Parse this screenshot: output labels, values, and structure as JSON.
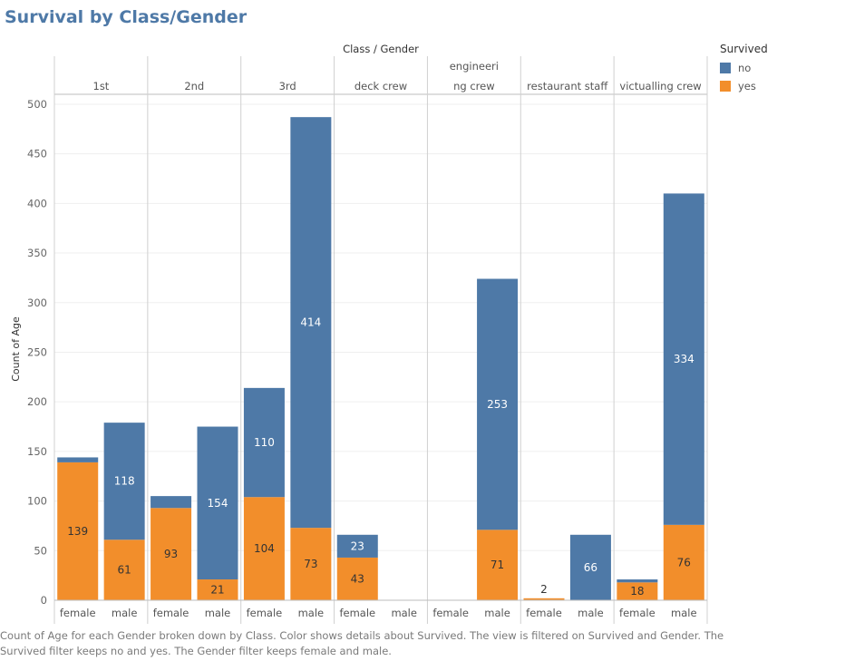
{
  "title": "Survival by Class/Gender",
  "caption": "Count of Age for each Gender broken down by Class.  Color shows details about Survived. The view is filtered on Survived and Gender. The Survived filter keeps no and yes. The Gender filter keeps female and male.",
  "legend": {
    "title": "Survived",
    "items": [
      {
        "label": "no",
        "color": "#4e79a7"
      },
      {
        "label": "yes",
        "color": "#f28e2b"
      }
    ]
  },
  "chart_data": {
    "type": "bar",
    "stacked": true,
    "title": "Survival by Class/Gender",
    "column_header": "Class / Gender",
    "ylabel": "Count of Age",
    "ylim": [
      0,
      510
    ],
    "yticks": [
      0,
      50,
      100,
      150,
      200,
      250,
      300,
      350,
      400,
      450,
      500
    ],
    "classes": [
      "1st",
      "2nd",
      "3rd",
      "deck crew",
      "engineering crew",
      "restaurant staff",
      "victualling crew"
    ],
    "class_header_lines": [
      [
        "1st"
      ],
      [
        "2nd"
      ],
      [
        "3rd"
      ],
      [
        "deck crew"
      ],
      [
        "engineeri",
        "ng crew"
      ],
      [
        "restaurant staff"
      ],
      [
        "victualling crew"
      ]
    ],
    "genders": [
      "female",
      "male"
    ],
    "series": [
      {
        "name": "yes",
        "color": "#f28e2b",
        "values": [
          [
            139,
            61
          ],
          [
            93,
            21
          ],
          [
            104,
            73
          ],
          [
            43,
            null
          ],
          [
            null,
            71
          ],
          [
            2,
            0
          ],
          [
            18,
            76
          ]
        ],
        "labels": [
          [
            "139",
            "61"
          ],
          [
            "93",
            "21"
          ],
          [
            "104",
            "73"
          ],
          [
            "43",
            ""
          ],
          [
            "",
            "71"
          ],
          [
            "2",
            ""
          ],
          [
            "18",
            "76"
          ]
        ]
      },
      {
        "name": "no",
        "color": "#4e79a7",
        "values": [
          [
            5,
            118
          ],
          [
            12,
            154
          ],
          [
            110,
            414
          ],
          [
            23,
            null
          ],
          [
            null,
            253
          ],
          [
            0,
            66
          ],
          [
            3,
            334
          ]
        ],
        "labels": [
          [
            "",
            "118"
          ],
          [
            "",
            "154"
          ],
          [
            "110",
            "414"
          ],
          [
            "23",
            ""
          ],
          [
            "",
            "253"
          ],
          [
            "",
            "66"
          ],
          [
            "",
            "334"
          ]
        ]
      }
    ]
  }
}
